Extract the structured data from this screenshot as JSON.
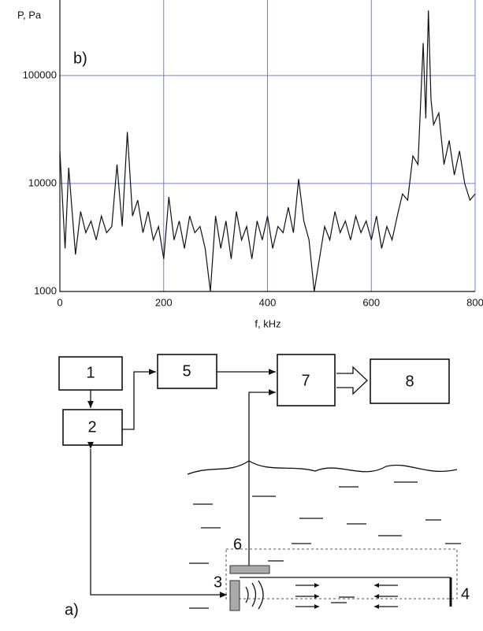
{
  "chart_data": {
    "type": "line",
    "annotation": "b)",
    "y_label": "P, Pa",
    "x_label": "f, kHz",
    "x": [
      0,
      10,
      17,
      30,
      40,
      50,
      60,
      70,
      80,
      90,
      100,
      110,
      120,
      130,
      140,
      150,
      160,
      170,
      180,
      190,
      200,
      210,
      220,
      230,
      240,
      250,
      260,
      270,
      280,
      290,
      300,
      310,
      320,
      330,
      340,
      350,
      360,
      370,
      380,
      390,
      400,
      410,
      420,
      430,
      440,
      450,
      460,
      470,
      480,
      490,
      500,
      510,
      520,
      530,
      540,
      550,
      560,
      570,
      580,
      590,
      600,
      610,
      620,
      630,
      640,
      650,
      660,
      670,
      680,
      690,
      700,
      705,
      710,
      715,
      720,
      730,
      740,
      750,
      760,
      770,
      780,
      790,
      800
    ],
    "values": [
      20000,
      2500,
      14000,
      2200,
      5500,
      3500,
      4500,
      3000,
      5000,
      3500,
      4000,
      15000,
      4000,
      30000,
      5000,
      7000,
      3500,
      5500,
      3000,
      4000,
      2000,
      7500,
      3000,
      4500,
      2500,
      5000,
      3500,
      4000,
      2500,
      1000,
      5000,
      2500,
      4500,
      2000,
      5500,
      3000,
      4000,
      2000,
      4500,
      3000,
      5000,
      2500,
      4000,
      3500,
      6000,
      3500,
      11000,
      4500,
      3000,
      1000,
      2000,
      4000,
      3000,
      5500,
      3500,
      4500,
      3000,
      5000,
      3500,
      4500,
      3000,
      5000,
      2500,
      4000,
      3000,
      5000,
      8000,
      7000,
      18000,
      15000,
      200000,
      40000,
      400000,
      60000,
      35000,
      45000,
      15000,
      25000,
      12000,
      20000,
      10000,
      7000,
      8000
    ],
    "color": "#111111",
    "log_y": true,
    "grid": true,
    "grid_color": "#6f7fd8",
    "xlim": [
      0,
      800
    ],
    "ylim": [
      1000,
      500000
    ],
    "xticks": [
      0,
      200,
      400,
      600,
      800
    ],
    "yticks": [
      1000,
      10000,
      100000
    ]
  },
  "diagram": {
    "blocks": [
      "1",
      "2",
      "5",
      "7",
      "8"
    ],
    "labels": [
      "3",
      "4",
      "6",
      "a)"
    ]
  }
}
